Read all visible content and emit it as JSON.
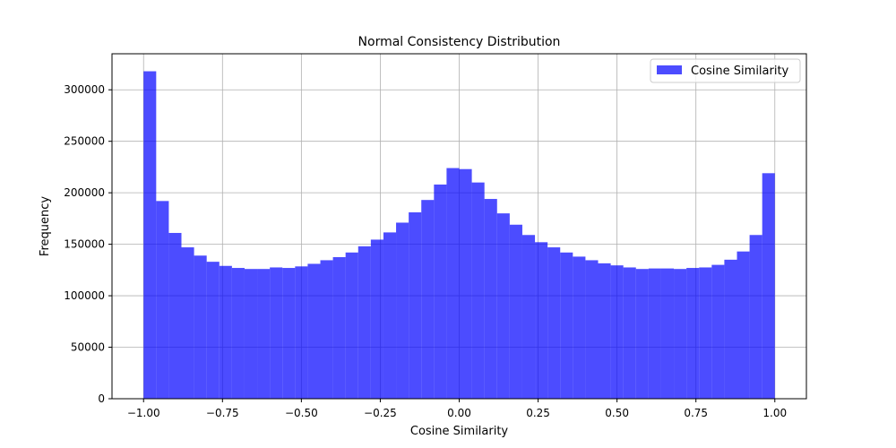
{
  "chart_data": {
    "type": "bar",
    "title": "Normal Consistency Distribution",
    "xlabel": "Cosine Similarity",
    "ylabel": "Frequency",
    "xlim": [
      -1.1,
      1.1
    ],
    "ylim": [
      0,
      335000
    ],
    "xticks": [
      -1.0,
      -0.75,
      -0.5,
      -0.25,
      0.0,
      0.25,
      0.5,
      0.75,
      1.0
    ],
    "xtick_labels": [
      "−1.00",
      "−0.75",
      "−0.50",
      "−0.25",
      "0.00",
      "0.25",
      "0.50",
      "0.75",
      "1.00"
    ],
    "yticks": [
      0,
      50000,
      100000,
      150000,
      200000,
      250000,
      300000
    ],
    "ytick_labels": [
      "0",
      "50000",
      "100000",
      "150000",
      "200000",
      "250000",
      "300000"
    ],
    "grid": true,
    "legend": {
      "position": "top-right",
      "entries": [
        "Cosine Similarity"
      ]
    },
    "bin_range": [
      -1.0,
      1.0
    ],
    "bins": 50,
    "color": "#0000ff",
    "opacity": 0.7,
    "series": [
      {
        "name": "Cosine Similarity",
        "values": [
          318000,
          192000,
          161000,
          147000,
          139000,
          133000,
          129000,
          127000,
          126000,
          126000,
          127500,
          127000,
          128500,
          131000,
          134500,
          137500,
          142000,
          148000,
          154500,
          161500,
          171000,
          181000,
          193000,
          208000,
          224000,
          223000,
          210000,
          194000,
          180000,
          169000,
          159000,
          152000,
          147000,
          142000,
          138000,
          134500,
          131500,
          129500,
          127500,
          126000,
          126500,
          126500,
          126000,
          127000,
          127500,
          130000,
          135000,
          143000,
          159000,
          219000
        ]
      }
    ]
  }
}
